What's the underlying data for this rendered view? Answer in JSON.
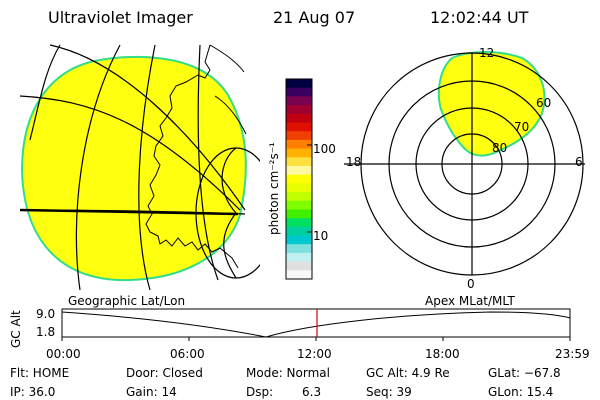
{
  "header": {
    "instrument": "Ultraviolet Imager",
    "date": "21 Aug 07",
    "time": "12:02:44 UT"
  },
  "colorbar": {
    "unit_label": "photon cm⁻²s⁻¹",
    "ticks": [
      "100",
      "10"
    ],
    "colors": [
      "#000040",
      "#3a0060",
      "#7a0050",
      "#a00030",
      "#c00010",
      "#e01000",
      "#f04000",
      "#ff8000",
      "#ffb000",
      "#ffe040",
      "#fff8a0",
      "#ffff00",
      "#e8ff00",
      "#c0ff00",
      "#80ff00",
      "#40f000",
      "#00e060",
      "#00d0a0",
      "#00c8d0",
      "#80e0e0",
      "#c0f0f0",
      "#e0e0e0",
      "#f8f8f8"
    ]
  },
  "map_left": {
    "fill_color": "#ffff10",
    "edge_color": "#33dd88"
  },
  "map_right": {
    "fill_color": "#ffff10",
    "edge_color": "#33dd88",
    "mlt_labels": {
      "top": "12",
      "left": "18",
      "right": "6",
      "bottom": "0"
    },
    "lat_labels": [
      "60",
      "70",
      "80"
    ]
  },
  "timeline": {
    "left_label": "Geographic Lat/Lon",
    "right_label": "Apex MLat/MLT",
    "y_axis_label": "GC Alt",
    "y_ticks": [
      "9.0",
      "1.8"
    ],
    "x_ticks": [
      "00:00",
      "06:00",
      "12:00",
      "18:00",
      "23:59"
    ],
    "marker_color": "#dd0000"
  },
  "footer": {
    "flt": "Flt: HOME",
    "ip": "IP: 36.0",
    "door": "Door: Closed",
    "gain": "Gain: 14",
    "mode": "Mode: Normal",
    "dsp_label": "Dsp:",
    "dsp_value": "6.3",
    "gcalt": "GC Alt: 4.9 Re",
    "seq": "Seq: 39",
    "glat": "GLat: −67.8",
    "glon": "GLon: 15.4"
  }
}
